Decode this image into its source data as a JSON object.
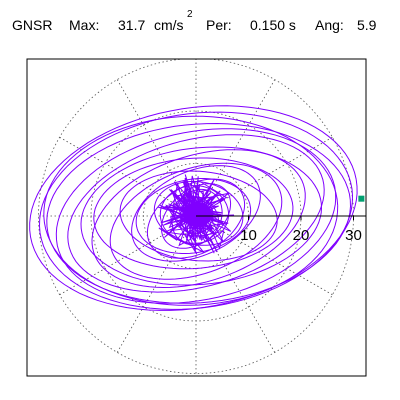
{
  "header": {
    "station": "GNSR",
    "max_label": "Max:",
    "max_value": "31.7",
    "max_unit": "cm/s",
    "max_unit_exponent": "2",
    "period_label": "Per:",
    "period_value": "0.150 s",
    "angle_label": "Ang:",
    "angle_value": "5.9"
  },
  "colors": {
    "trace": "#8000ff",
    "marker": "#00a070",
    "grid": "#555555",
    "frame": "#000000",
    "axis": "#000000"
  },
  "chart_data": {
    "type": "scatter",
    "title": "",
    "xlabel": "",
    "ylabel": "",
    "radial_ticks": [
      10,
      20,
      30
    ],
    "radial_grid_circles": [
      10,
      20,
      30
    ],
    "angular_grid_step_deg": 30,
    "grid": true,
    "legend": "none",
    "units": "cm/s2",
    "max_acceleration": 31.7,
    "max_direction_deg": 5.9,
    "max_point": {
      "x": 31.5,
      "y": 3.3
    },
    "series": [
      {
        "orbit_loops": [
          {
            "a": 30.0,
            "b": 18.5,
            "tilt_deg": 8,
            "cx": 0.0,
            "cy": 1.0
          },
          {
            "a": 31.5,
            "b": 19.0,
            "tilt_deg": 10,
            "cx": -0.5,
            "cy": 1.5
          },
          {
            "a": 29.0,
            "b": 17.0,
            "tilt_deg": 5,
            "cx": 0.5,
            "cy": 0.5
          },
          {
            "a": 27.0,
            "b": 16.0,
            "tilt_deg": 12,
            "cx": 0.0,
            "cy": 0.0
          },
          {
            "a": 28.0,
            "b": 18.0,
            "tilt_deg": 2,
            "cx": -1.0,
            "cy": 1.0
          },
          {
            "a": 25.0,
            "b": 14.0,
            "tilt_deg": 15,
            "cx": 0.0,
            "cy": 0.5
          },
          {
            "a": 23.0,
            "b": 13.0,
            "tilt_deg": 6,
            "cx": 1.0,
            "cy": 0.0
          },
          {
            "a": 21.0,
            "b": 12.0,
            "tilt_deg": 18,
            "cx": 0.5,
            "cy": -0.5
          },
          {
            "a": 19.0,
            "b": 10.5,
            "tilt_deg": 4,
            "cx": -0.5,
            "cy": 0.5
          },
          {
            "a": 17.0,
            "b": 10.0,
            "tilt_deg": 20,
            "cx": 0.0,
            "cy": -1.0
          },
          {
            "a": 15.0,
            "b": 8.5,
            "tilt_deg": -5,
            "cx": 0.5,
            "cy": 0.0
          },
          {
            "a": 13.0,
            "b": 8.0,
            "tilt_deg": 25,
            "cx": 0.0,
            "cy": 0.5
          },
          {
            "a": 11.0,
            "b": 7.0,
            "tilt_deg": 10,
            "cx": -0.5,
            "cy": 0.0
          },
          {
            "a": 10.0,
            "b": 6.5,
            "tilt_deg": 30,
            "cx": 0.0,
            "cy": -0.5
          },
          {
            "a": 8.5,
            "b": 6.0,
            "tilt_deg": -10,
            "cx": 0.5,
            "cy": 0.5
          },
          {
            "a": 7.5,
            "b": 5.0,
            "tilt_deg": 40,
            "cx": 0.0,
            "cy": 0.0
          },
          {
            "a": 6.5,
            "b": 5.5,
            "tilt_deg": 0,
            "cx": -0.3,
            "cy": 0.3
          },
          {
            "a": 5.5,
            "b": 4.5,
            "tilt_deg": 60,
            "cx": 0.2,
            "cy": -0.2
          },
          {
            "a": 4.5,
            "b": 3.5,
            "tilt_deg": -30,
            "cx": 0.0,
            "cy": 0.0
          },
          {
            "a": 3.5,
            "b": 3.0,
            "tilt_deg": 80,
            "cx": 0.1,
            "cy": 0.1
          }
        ]
      }
    ]
  }
}
